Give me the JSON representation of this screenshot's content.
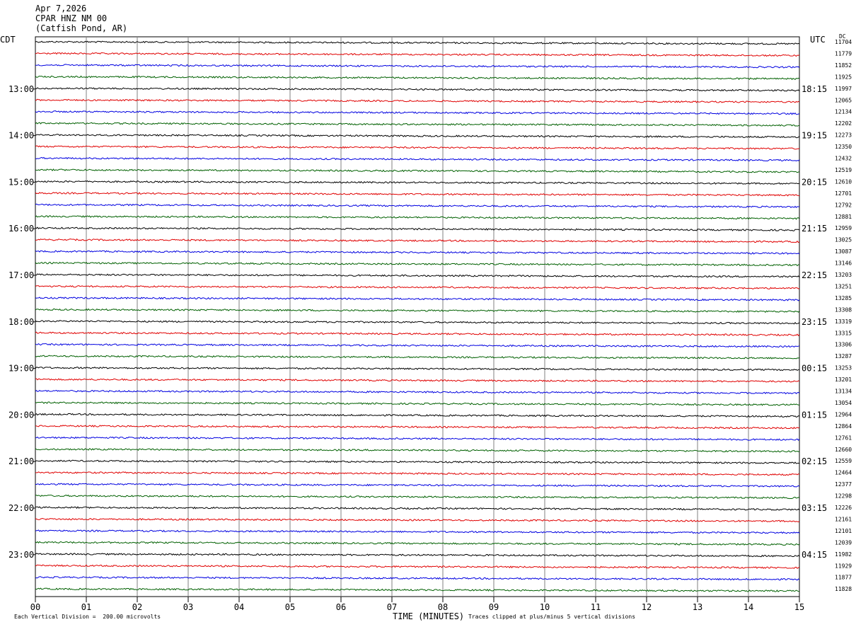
{
  "header": {
    "date": "Apr 7,2026",
    "station": "CPAR HNZ NM 00",
    "location": "(Catfish Pond, AR)"
  },
  "left_timezone": "CDT",
  "right_timezone": "UTC",
  "dc_label": "DC",
  "footer": {
    "scale_note": "Each Vertical Division =  200.00 microvolts",
    "clip_note": "Traces clipped at plus/minus 5 vertical divisions"
  },
  "colors": {
    "traces": [
      "#000000",
      "#e00000",
      "#0000e0",
      "#006000"
    ],
    "grid": "#808080"
  },
  "chart_data": {
    "type": "line",
    "xlabel": "TIME (MINUTES)",
    "x_ticks": [
      "00",
      "01",
      "02",
      "03",
      "04",
      "05",
      "06",
      "07",
      "08",
      "09",
      "10",
      "11",
      "12",
      "13",
      "14",
      "15"
    ],
    "xlim": [
      0,
      15
    ],
    "trace_count": 48,
    "left_hour_labels": [
      "13:00",
      "14:00",
      "15:00",
      "16:00",
      "17:00",
      "18:00",
      "19:00",
      "20:00",
      "21:00",
      "22:00",
      "23:00"
    ],
    "right_hour_labels": [
      "18:15",
      "19:15",
      "20:15",
      "21:15",
      "22:15",
      "23:15",
      "00:15",
      "01:15",
      "02:15",
      "03:15",
      "04:15"
    ],
    "dc_values": [
      "11704",
      "11779",
      "11852",
      "11925",
      "11997",
      "12065",
      "12134",
      "12202",
      "12273",
      "12350",
      "12432",
      "12519",
      "12610",
      "12701",
      "12792",
      "12881",
      "12959",
      "13025",
      "13087",
      "13146",
      "13203",
      "13251",
      "13285",
      "13308",
      "13319",
      "13315",
      "13306",
      "13287",
      "13253",
      "13201",
      "13134",
      "13054",
      "12964",
      "12864",
      "12761",
      "12660",
      "12559",
      "12464",
      "12377",
      "12298",
      "12226",
      "12161",
      "12101",
      "12039",
      "11982",
      "11929",
      "11877",
      "11828"
    ]
  }
}
